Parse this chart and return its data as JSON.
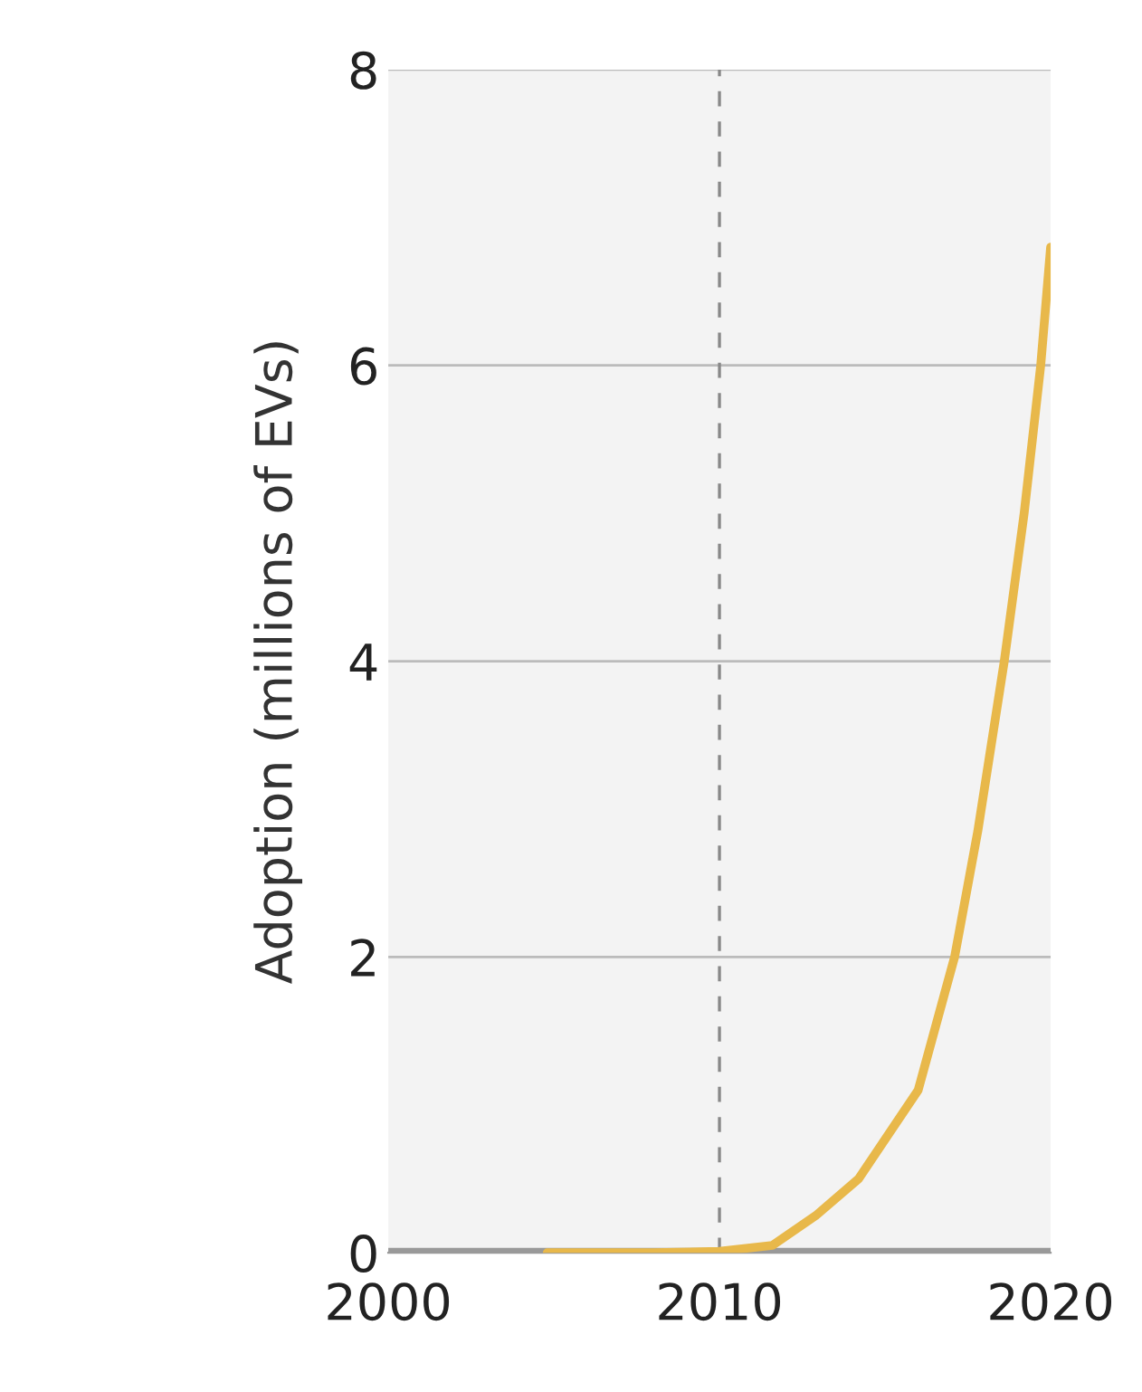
{
  "chart_data": {
    "type": "line",
    "ylabel": "Adoption (millions of EVs)",
    "x": [
      2004.8,
      2008,
      2010,
      2011.6,
      2012.9,
      2014.2,
      2016,
      2017.1,
      2017.8,
      2018.6,
      2019.2,
      2019.7,
      2020
    ],
    "series": [
      {
        "color": "#e8b84a",
        "values": [
          0,
          0,
          0.01,
          0.05,
          0.25,
          0.5,
          1.1,
          2.0,
          2.85,
          4.0,
          5.0,
          6.0,
          6.8
        ]
      }
    ],
    "xlim": [
      2000,
      2020
    ],
    "xticks": [
      2000,
      2010,
      2020
    ],
    "ylim": [
      0,
      8
    ],
    "yticks": [
      0,
      2,
      4,
      6,
      8
    ],
    "grid": "y",
    "ref_lines": [
      {
        "axis": "x",
        "value": 2010,
        "color": "#888888",
        "line_style": "dashed"
      },
      {
        "axis": "y",
        "value": 0,
        "color": "#999999",
        "line_style": "solid"
      }
    ]
  }
}
